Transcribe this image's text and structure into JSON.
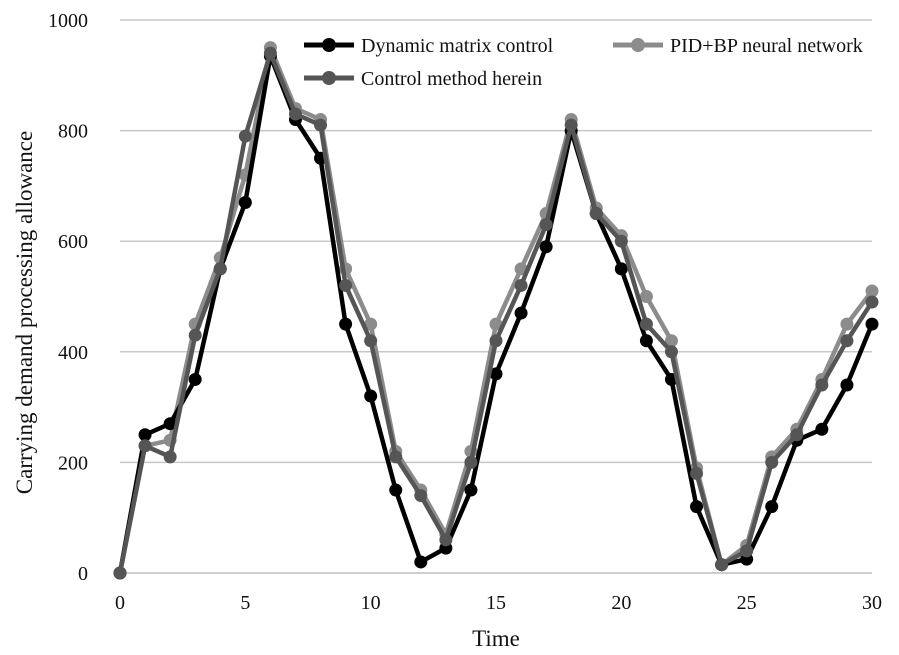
{
  "chart_data": {
    "type": "line",
    "title": "",
    "xlabel": "Time",
    "ylabel": "Carrying demand processing allowance",
    "xlim": [
      0,
      30
    ],
    "ylim": [
      0,
      1000
    ],
    "x_ticks": [
      0,
      5,
      10,
      15,
      20,
      25,
      30
    ],
    "y_ticks": [
      0,
      200,
      400,
      600,
      800,
      1000
    ],
    "grid": "horizontal",
    "legend_position": "top-right",
    "x": [
      0,
      1,
      2,
      3,
      4,
      5,
      6,
      7,
      8,
      9,
      10,
      11,
      12,
      13,
      14,
      15,
      16,
      17,
      18,
      19,
      20,
      21,
      22,
      23,
      24,
      25,
      26,
      27,
      28,
      29,
      30
    ],
    "series": [
      {
        "name": "Dynamic matrix control",
        "color": "#000000",
        "values": [
          0,
          250,
          270,
          350,
          550,
          670,
          935,
          820,
          750,
          450,
          320,
          150,
          20,
          45,
          150,
          360,
          470,
          590,
          800,
          650,
          550,
          420,
          350,
          120,
          15,
          25,
          120,
          240,
          260,
          340,
          450
        ]
      },
      {
        "name": "PID+BP neural network",
        "color": "#8c8c8c",
        "values": [
          0,
          230,
          240,
          450,
          570,
          720,
          950,
          840,
          820,
          550,
          450,
          220,
          150,
          70,
          220,
          450,
          550,
          650,
          820,
          660,
          610,
          500,
          420,
          190,
          15,
          50,
          210,
          260,
          350,
          450,
          510
        ]
      },
      {
        "name": "Control method herein",
        "color": "#555555",
        "values": [
          0,
          230,
          210,
          430,
          550,
          790,
          940,
          830,
          810,
          520,
          420,
          210,
          140,
          60,
          200,
          420,
          520,
          630,
          810,
          650,
          600,
          450,
          400,
          180,
          15,
          40,
          200,
          250,
          340,
          420,
          490
        ]
      }
    ]
  }
}
